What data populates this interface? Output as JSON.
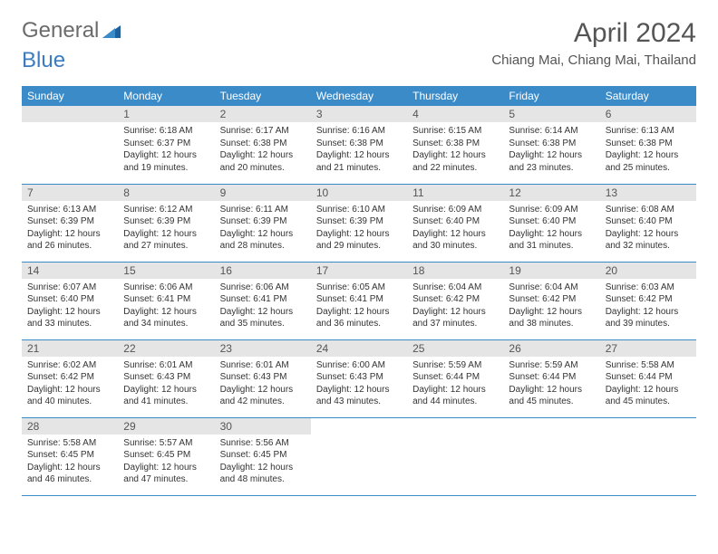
{
  "logo": {
    "part1": "General",
    "part2": "Blue"
  },
  "title": "April 2024",
  "subtitle": "Chiang Mai, Chiang Mai, Thailand",
  "colors": {
    "header_bg": "#3b8bc9",
    "header_fg": "#ffffff",
    "daynum_bg": "#e5e5e5",
    "rule": "#3b8bc9",
    "logo_gray": "#6b6b6b",
    "logo_blue": "#3b7bbf"
  },
  "weekdays": [
    "Sunday",
    "Monday",
    "Tuesday",
    "Wednesday",
    "Thursday",
    "Friday",
    "Saturday"
  ],
  "weeks": [
    [
      {
        "n": "",
        "sr": "",
        "ss": "",
        "dl": ""
      },
      {
        "n": "1",
        "sr": "6:18 AM",
        "ss": "6:37 PM",
        "dl": "12 hours and 19 minutes."
      },
      {
        "n": "2",
        "sr": "6:17 AM",
        "ss": "6:38 PM",
        "dl": "12 hours and 20 minutes."
      },
      {
        "n": "3",
        "sr": "6:16 AM",
        "ss": "6:38 PM",
        "dl": "12 hours and 21 minutes."
      },
      {
        "n": "4",
        "sr": "6:15 AM",
        "ss": "6:38 PM",
        "dl": "12 hours and 22 minutes."
      },
      {
        "n": "5",
        "sr": "6:14 AM",
        "ss": "6:38 PM",
        "dl": "12 hours and 23 minutes."
      },
      {
        "n": "6",
        "sr": "6:13 AM",
        "ss": "6:38 PM",
        "dl": "12 hours and 25 minutes."
      }
    ],
    [
      {
        "n": "7",
        "sr": "6:13 AM",
        "ss": "6:39 PM",
        "dl": "12 hours and 26 minutes."
      },
      {
        "n": "8",
        "sr": "6:12 AM",
        "ss": "6:39 PM",
        "dl": "12 hours and 27 minutes."
      },
      {
        "n": "9",
        "sr": "6:11 AM",
        "ss": "6:39 PM",
        "dl": "12 hours and 28 minutes."
      },
      {
        "n": "10",
        "sr": "6:10 AM",
        "ss": "6:39 PM",
        "dl": "12 hours and 29 minutes."
      },
      {
        "n": "11",
        "sr": "6:09 AM",
        "ss": "6:40 PM",
        "dl": "12 hours and 30 minutes."
      },
      {
        "n": "12",
        "sr": "6:09 AM",
        "ss": "6:40 PM",
        "dl": "12 hours and 31 minutes."
      },
      {
        "n": "13",
        "sr": "6:08 AM",
        "ss": "6:40 PM",
        "dl": "12 hours and 32 minutes."
      }
    ],
    [
      {
        "n": "14",
        "sr": "6:07 AM",
        "ss": "6:40 PM",
        "dl": "12 hours and 33 minutes."
      },
      {
        "n": "15",
        "sr": "6:06 AM",
        "ss": "6:41 PM",
        "dl": "12 hours and 34 minutes."
      },
      {
        "n": "16",
        "sr": "6:06 AM",
        "ss": "6:41 PM",
        "dl": "12 hours and 35 minutes."
      },
      {
        "n": "17",
        "sr": "6:05 AM",
        "ss": "6:41 PM",
        "dl": "12 hours and 36 minutes."
      },
      {
        "n": "18",
        "sr": "6:04 AM",
        "ss": "6:42 PM",
        "dl": "12 hours and 37 minutes."
      },
      {
        "n": "19",
        "sr": "6:04 AM",
        "ss": "6:42 PM",
        "dl": "12 hours and 38 minutes."
      },
      {
        "n": "20",
        "sr": "6:03 AM",
        "ss": "6:42 PM",
        "dl": "12 hours and 39 minutes."
      }
    ],
    [
      {
        "n": "21",
        "sr": "6:02 AM",
        "ss": "6:42 PM",
        "dl": "12 hours and 40 minutes."
      },
      {
        "n": "22",
        "sr": "6:01 AM",
        "ss": "6:43 PM",
        "dl": "12 hours and 41 minutes."
      },
      {
        "n": "23",
        "sr": "6:01 AM",
        "ss": "6:43 PM",
        "dl": "12 hours and 42 minutes."
      },
      {
        "n": "24",
        "sr": "6:00 AM",
        "ss": "6:43 PM",
        "dl": "12 hours and 43 minutes."
      },
      {
        "n": "25",
        "sr": "5:59 AM",
        "ss": "6:44 PM",
        "dl": "12 hours and 44 minutes."
      },
      {
        "n": "26",
        "sr": "5:59 AM",
        "ss": "6:44 PM",
        "dl": "12 hours and 45 minutes."
      },
      {
        "n": "27",
        "sr": "5:58 AM",
        "ss": "6:44 PM",
        "dl": "12 hours and 45 minutes."
      }
    ],
    [
      {
        "n": "28",
        "sr": "5:58 AM",
        "ss": "6:45 PM",
        "dl": "12 hours and 46 minutes."
      },
      {
        "n": "29",
        "sr": "5:57 AM",
        "ss": "6:45 PM",
        "dl": "12 hours and 47 minutes."
      },
      {
        "n": "30",
        "sr": "5:56 AM",
        "ss": "6:45 PM",
        "dl": "12 hours and 48 minutes."
      },
      {
        "n": "",
        "sr": "",
        "ss": "",
        "dl": ""
      },
      {
        "n": "",
        "sr": "",
        "ss": "",
        "dl": ""
      },
      {
        "n": "",
        "sr": "",
        "ss": "",
        "dl": ""
      },
      {
        "n": "",
        "sr": "",
        "ss": "",
        "dl": ""
      }
    ]
  ],
  "labels": {
    "sunrise": "Sunrise:",
    "sunset": "Sunset:",
    "daylight": "Daylight:"
  }
}
